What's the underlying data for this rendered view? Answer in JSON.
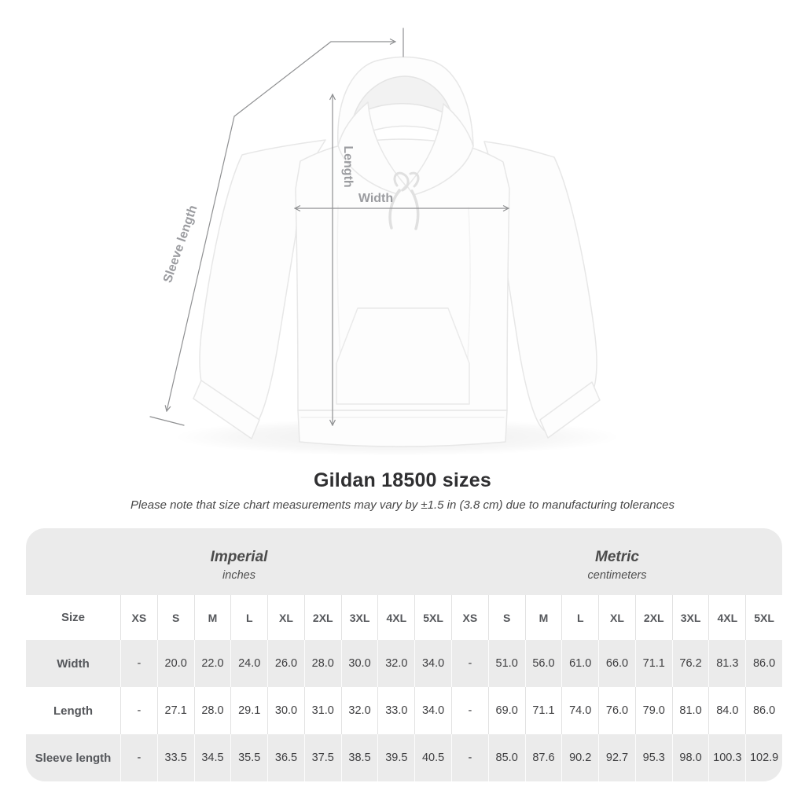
{
  "title": "Gildan 18500 sizes",
  "subtitle": "Please note that size chart measurements may vary by ±1.5 in (3.8 cm) due to manufacturing tolerances",
  "diagram": {
    "labels": {
      "sleeve": "Sleeve length",
      "length": "Length",
      "width": "Width"
    },
    "line_color": "#8f9092",
    "label_color": "#9b9ca0"
  },
  "table": {
    "groups": [
      {
        "label": "Imperial",
        "unit": "inches"
      },
      {
        "label": "Metric",
        "unit": "centimeters"
      }
    ],
    "size_header": "Size",
    "size_columns": [
      "XS",
      "S",
      "M",
      "L",
      "XL",
      "2XL",
      "3XL",
      "4XL",
      "5XL"
    ],
    "rows": [
      {
        "label": "Width",
        "imperial": [
          "-",
          "20.0",
          "22.0",
          "24.0",
          "26.0",
          "28.0",
          "30.0",
          "32.0",
          "34.0"
        ],
        "metric": [
          "-",
          "51.0",
          "56.0",
          "61.0",
          "66.0",
          "71.1",
          "76.2",
          "81.3",
          "86.0"
        ]
      },
      {
        "label": "Length",
        "imperial": [
          "-",
          "27.1",
          "28.0",
          "29.1",
          "30.0",
          "31.0",
          "32.0",
          "33.0",
          "34.0"
        ],
        "metric": [
          "-",
          "69.0",
          "71.1",
          "74.0",
          "76.0",
          "79.0",
          "81.0",
          "84.0",
          "86.0"
        ]
      },
      {
        "label": "Sleeve length",
        "imperial": [
          "-",
          "33.5",
          "34.5",
          "35.5",
          "36.5",
          "37.5",
          "38.5",
          "39.5",
          "40.5"
        ],
        "metric": [
          "-",
          "85.0",
          "87.6",
          "90.2",
          "92.7",
          "95.3",
          "98.0",
          "100.3",
          "102.9"
        ]
      }
    ],
    "stripe_color": "#ebebeb"
  }
}
